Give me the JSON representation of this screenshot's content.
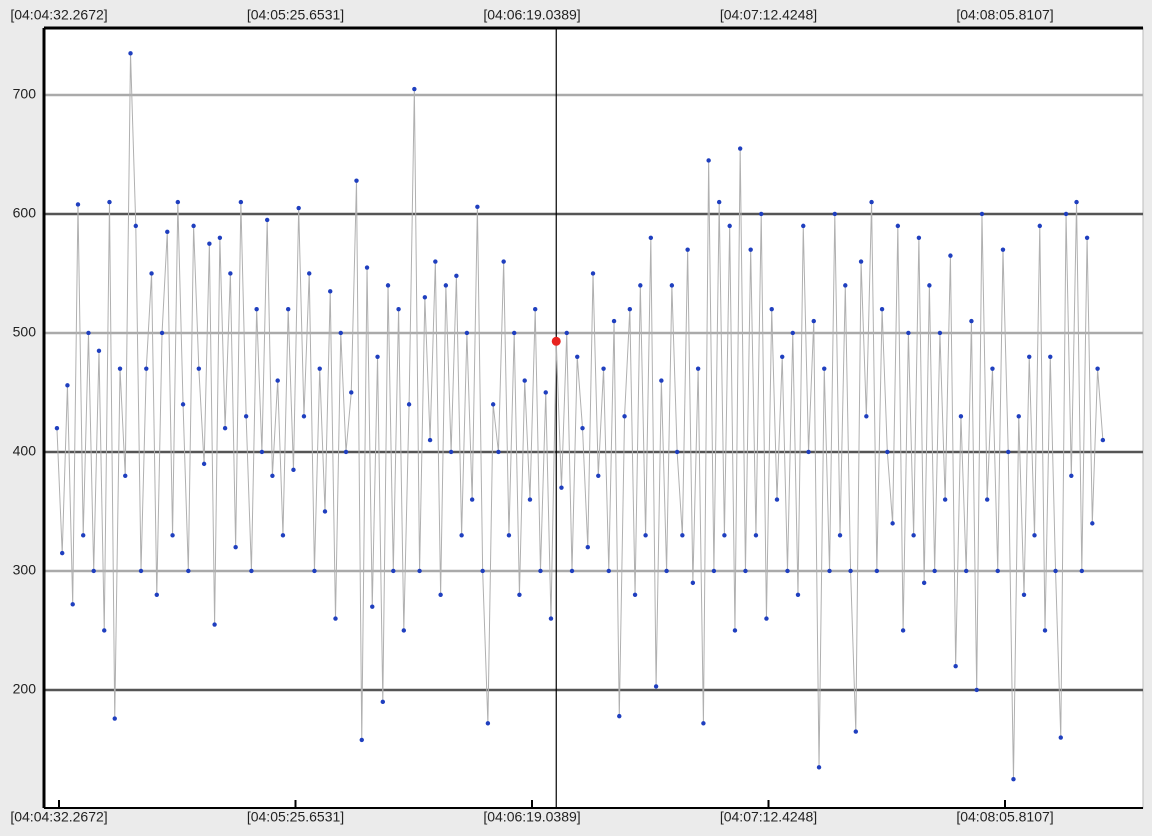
{
  "chart_data": {
    "type": "line",
    "x": [
      271.8,
      272.99,
      274.17,
      275.36,
      276.55,
      277.73,
      278.92,
      280.1,
      281.29,
      282.48,
      283.66,
      284.85,
      286.04,
      287.22,
      288.41,
      289.6,
      290.78,
      291.97,
      293.16,
      294.34,
      295.53,
      296.71,
      297.9,
      299.09,
      300.27,
      301.46,
      302.65,
      303.83,
      305.02,
      306.21,
      307.39,
      308.58,
      309.76,
      310.95,
      312.14,
      313.32,
      314.51,
      315.7,
      316.88,
      318.07,
      319.26,
      320.44,
      321.63,
      322.82,
      324.0,
      325.19,
      326.37,
      327.56,
      328.75,
      329.93,
      331.12,
      332.31,
      333.49,
      334.68,
      335.87,
      337.05,
      338.24,
      339.42,
      340.61,
      341.8,
      342.98,
      344.17,
      345.36,
      346.54,
      347.73,
      348.92,
      350.1,
      351.29,
      352.48,
      353.66,
      354.85,
      356.03,
      357.22,
      358.41,
      359.59,
      360.78,
      361.97,
      363.15,
      364.34,
      365.53,
      366.71,
      367.9,
      369.08,
      370.27,
      371.46,
      372.64,
      373.83,
      375.02,
      376.2,
      377.39,
      378.58,
      379.76,
      380.95,
      382.14,
      383.32,
      384.51,
      385.69,
      386.88,
      388.07,
      389.25,
      390.44,
      391.63,
      392.81,
      394.0,
      395.19,
      396.37,
      397.56,
      398.74,
      399.93,
      401.12,
      402.3,
      403.49,
      404.68,
      405.86,
      407.05,
      408.24,
      409.42,
      410.61,
      411.8,
      412.98,
      414.17,
      415.35,
      416.54,
      417.73,
      418.91,
      420.1,
      421.29,
      422.47,
      423.66,
      424.85,
      426.03,
      427.22,
      428.4,
      429.59,
      430.78,
      431.96,
      433.15,
      434.34,
      435.52,
      436.71,
      437.9,
      439.08,
      440.27,
      441.46,
      442.64,
      443.83,
      445.01,
      446.2,
      447.39,
      448.57,
      449.76,
      450.95,
      452.13,
      453.32,
      454.51,
      455.69,
      456.88,
      458.06,
      459.25,
      460.44,
      461.62,
      462.81,
      464.0,
      465.18,
      466.37,
      467.56,
      468.74,
      469.93,
      471.12,
      472.3,
      473.49,
      474.67,
      475.86,
      477.05,
      478.23,
      479.42,
      480.61,
      481.79,
      482.98,
      484.17,
      485.35,
      486.54,
      487.72,
      488.91,
      490.1,
      491.28,
      492.47,
      493.66,
      494.84,
      496.03,
      497.22,
      498.4,
      499.59,
      500.78,
      501.96,
      503.15,
      504.34,
      505.52,
      506.71,
      507.9
    ],
    "series": [
      {
        "color": "#1f3fbf",
        "values": [
          420,
          315,
          456,
          272,
          608,
          330,
          500,
          300,
          485,
          250,
          610,
          176,
          470,
          380,
          735,
          590,
          300,
          470,
          550,
          280,
          500,
          585,
          330,
          610,
          440,
          300,
          590,
          470,
          390,
          575,
          255,
          580,
          420,
          550,
          320,
          610,
          430,
          300,
          520,
          400,
          595,
          380,
          460,
          330,
          520,
          385,
          605,
          430,
          550,
          300,
          470,
          350,
          535,
          260,
          500,
          400,
          450,
          628,
          158,
          555,
          270,
          480,
          190,
          540,
          300,
          520,
          250,
          440,
          705,
          300,
          530,
          410,
          560,
          280,
          540,
          400,
          548,
          330,
          500,
          360,
          606,
          300,
          172,
          440,
          400,
          560,
          330,
          500,
          280,
          460,
          360,
          520,
          300,
          450,
          260,
          493,
          370,
          500,
          300,
          480,
          420,
          320,
          550,
          380,
          470,
          300,
          510,
          178,
          430,
          520,
          280,
          540,
          330,
          580,
          203,
          460,
          300,
          540,
          400,
          330,
          570,
          290,
          470,
          172,
          645,
          300,
          610,
          330,
          590,
          250,
          655,
          300,
          570,
          330,
          600,
          260,
          520,
          360,
          480,
          300,
          500,
          280,
          590,
          400,
          510,
          135,
          470,
          300,
          600,
          330,
          540,
          300,
          165,
          560,
          430,
          610,
          300,
          520,
          400,
          340,
          590,
          250,
          500,
          330,
          580,
          290,
          540,
          300,
          500,
          360,
          565,
          220,
          430,
          300,
          510,
          200,
          600,
          360,
          470,
          300,
          570,
          400,
          125,
          430,
          280,
          480,
          330,
          590,
          250,
          480,
          300,
          160,
          600,
          380,
          610,
          300,
          580,
          340,
          470,
          410
        ]
      }
    ],
    "highlight": {
      "x": 384.51,
      "y": 493,
      "color": "#e8231f"
    },
    "xlim": [
      268.88,
      516.96
    ],
    "xticks": [
      {
        "value": 272.2672,
        "label": "[04:04:32.2672]"
      },
      {
        "value": 325.6531,
        "label": "[04:05:25.6531]"
      },
      {
        "value": 379.0389,
        "label": "[04:06:19.0389]"
      },
      {
        "value": 432.4248,
        "label": "[04:07:12.4248]"
      },
      {
        "value": 485.8107,
        "label": "[04:08:05.8107]"
      }
    ],
    "ylim": [
      100.8,
      756.3
    ],
    "yticks": [
      200,
      300,
      400,
      500,
      600,
      700
    ],
    "grid": true
  }
}
